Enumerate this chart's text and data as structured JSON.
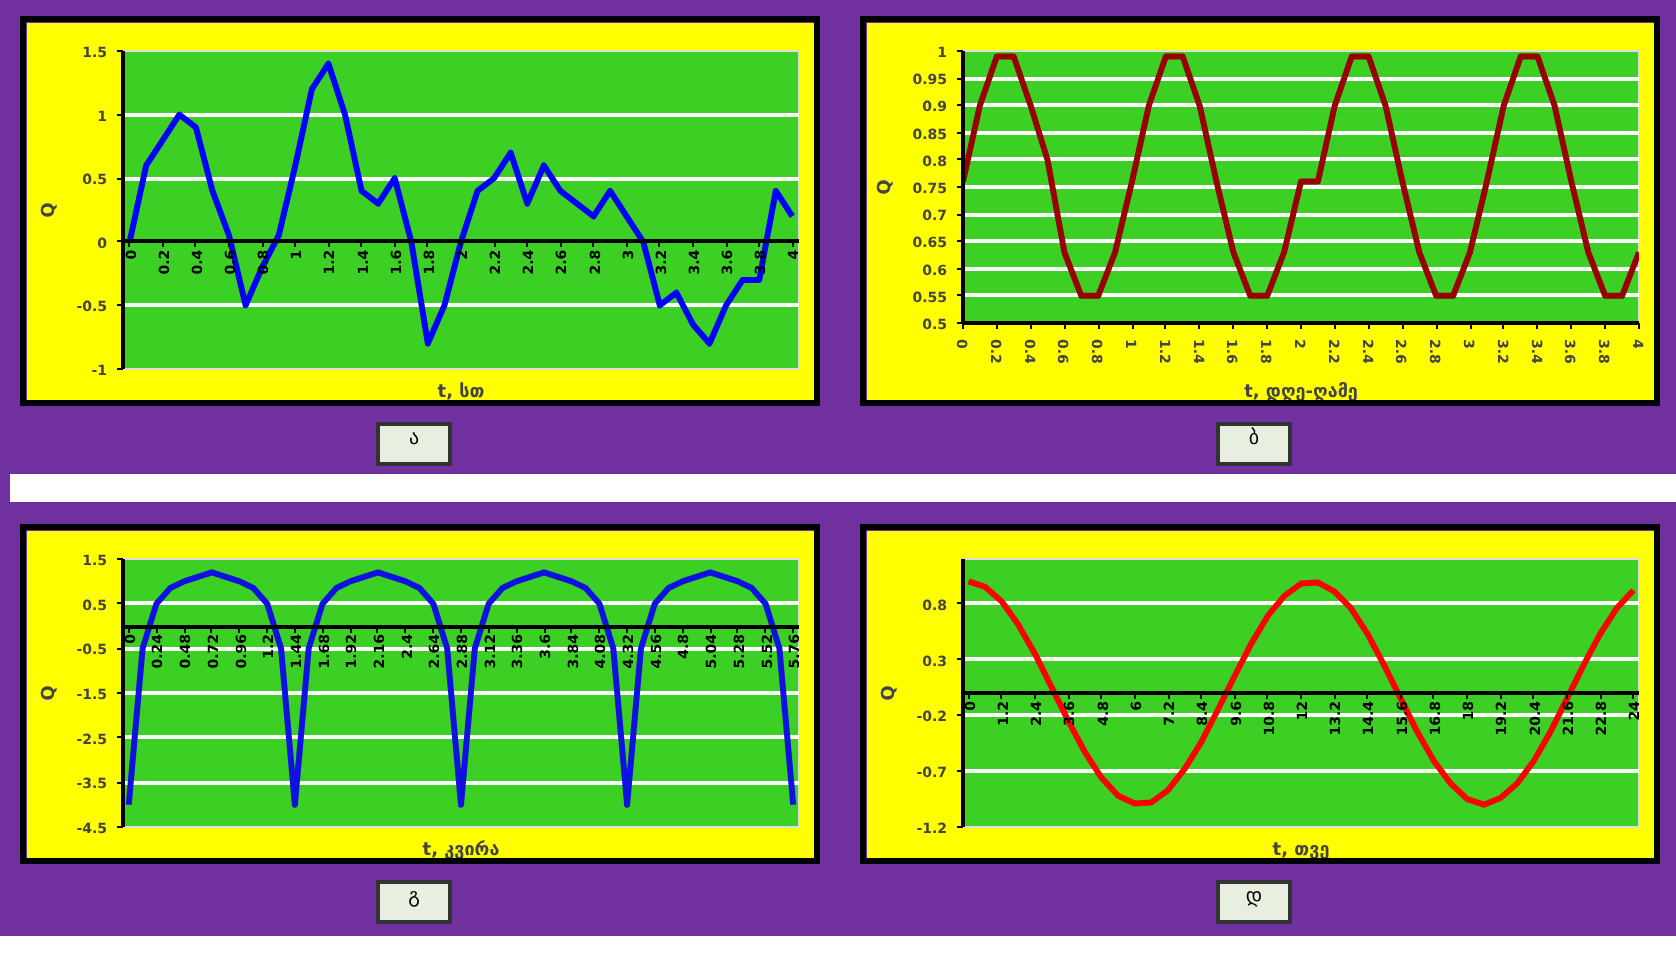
{
  "chart_data": [
    {
      "type": "line",
      "xlabel": "t, სთ",
      "ylabel": "Q",
      "color": "#0000ff",
      "x": [
        0,
        0.1,
        0.2,
        0.3,
        0.4,
        0.5,
        0.6,
        0.7,
        0.8,
        0.9,
        1,
        1.1,
        1.2,
        1.3,
        1.4,
        1.5,
        1.6,
        1.7,
        1.8,
        1.9,
        2,
        2.1,
        2.2,
        2.3,
        2.4,
        2.5,
        2.6,
        2.7,
        2.8,
        2.9,
        3,
        3.1,
        3.2,
        3.3,
        3.4,
        3.5,
        3.6,
        3.7,
        3.8,
        3.9,
        4
      ],
      "values": [
        0,
        0.6,
        0.8,
        1.0,
        0.9,
        0.4,
        0.05,
        -0.5,
        -0.2,
        0.05,
        0.6,
        1.2,
        1.4,
        1.0,
        0.4,
        0.3,
        0.5,
        0.0,
        -0.8,
        -0.5,
        0.0,
        0.4,
        0.5,
        0.7,
        0.3,
        0.6,
        0.4,
        0.3,
        0.2,
        0.4,
        0.2,
        0.0,
        -0.5,
        -0.4,
        -0.65,
        -0.8,
        -0.5,
        -0.3,
        -0.3,
        0.4,
        0.2
      ],
      "xlim": [
        -0.04,
        4.04
      ],
      "ylim": [
        -1,
        1.5
      ],
      "xticks": [
        0,
        0.2,
        0.4,
        0.6,
        0.8,
        1,
        1.2,
        1.4,
        1.6,
        1.8,
        2,
        2.2,
        2.4,
        2.6,
        2.8,
        3,
        3.2,
        3.4,
        3.6,
        3.8,
        4
      ],
      "yticks": [
        -1,
        -0.5,
        0,
        0.5,
        1,
        1.5
      ],
      "grid": "y",
      "annotations": [
        "ა"
      ]
    },
    {
      "type": "line",
      "xlabel": "t, დღე-ღამე",
      "ylabel": "Q",
      "color": "#990000",
      "x": [
        0,
        0.1,
        0.2,
        0.3,
        0.4,
        0.5,
        0.6,
        0.7,
        0.8,
        0.9,
        1,
        1.1,
        1.2,
        1.3,
        1.4,
        1.5,
        1.6,
        1.7,
        1.8,
        1.9,
        2,
        2.1,
        2.2,
        2.3,
        2.4,
        2.5,
        2.6,
        2.7,
        2.8,
        2.9,
        3,
        3.1,
        3.2,
        3.3,
        3.4,
        3.5,
        3.6,
        3.7,
        3.8,
        3.9,
        4
      ],
      "values": [
        0.76,
        0.9,
        0.99,
        0.99,
        0.9,
        0.8,
        0.63,
        0.55,
        0.55,
        0.63,
        0.76,
        0.9,
        0.99,
        0.99,
        0.9,
        0.76,
        0.63,
        0.55,
        0.55,
        0.63,
        0.76,
        0.76,
        0.9,
        0.99,
        0.99,
        0.9,
        0.76,
        0.63,
        0.55,
        0.55,
        0.63,
        0.76,
        0.9,
        0.99,
        0.99,
        0.9,
        0.76,
        0.63,
        0.55,
        0.55,
        0.63
      ],
      "xlim": [
        0,
        4
      ],
      "ylim": [
        0.5,
        1
      ],
      "xticks": [
        0,
        0.2,
        0.4,
        0.6,
        0.8,
        1,
        1.2,
        1.4,
        1.6,
        1.8,
        2,
        2.2,
        2.4,
        2.6,
        2.8,
        3,
        3.2,
        3.4,
        3.6,
        3.8,
        4
      ],
      "yticks": [
        0.5,
        0.55,
        0.6,
        0.65,
        0.7,
        0.75,
        0.8,
        0.85,
        0.9,
        0.95,
        1
      ],
      "grid": "y",
      "annotations": [
        "ბ"
      ]
    },
    {
      "type": "line",
      "xlabel": "t, კვირა",
      "ylabel": "Q",
      "color": "#1010e0",
      "x": [
        0,
        0.12,
        0.24,
        0.36,
        0.48,
        0.6,
        0.72,
        0.84,
        0.96,
        1.08,
        1.2,
        1.32,
        1.44,
        1.56,
        1.68,
        1.8,
        1.92,
        2.04,
        2.16,
        2.28,
        2.4,
        2.52,
        2.64,
        2.76,
        2.88,
        3,
        3.12,
        3.24,
        3.36,
        3.48,
        3.6,
        3.72,
        3.84,
        3.96,
        4.08,
        4.2,
        4.32,
        4.44,
        4.56,
        4.68,
        4.8,
        4.92,
        5.04,
        5.16,
        5.28,
        5.4,
        5.52,
        5.64,
        5.76
      ],
      "values": [
        -4,
        -0.5,
        0.5,
        0.85,
        1.0,
        1.1,
        1.2,
        1.1,
        1.0,
        0.85,
        0.5,
        -0.5,
        -4,
        -0.5,
        0.5,
        0.85,
        1.0,
        1.1,
        1.2,
        1.1,
        1.0,
        0.85,
        0.5,
        -0.5,
        -4,
        -0.5,
        0.5,
        0.85,
        1.0,
        1.1,
        1.2,
        1.1,
        1.0,
        0.85,
        0.5,
        -0.5,
        -4,
        -0.5,
        0.5,
        0.85,
        1.0,
        1.1,
        1.2,
        1.1,
        1.0,
        0.85,
        0.5,
        -0.5,
        -4
      ],
      "xlim": [
        -0.05,
        5.81
      ],
      "ylim": [
        -4.5,
        1.5
      ],
      "xticks": [
        0,
        0.24,
        0.48,
        0.72,
        0.96,
        1.2,
        1.44,
        1.68,
        1.92,
        2.16,
        2.4,
        2.64,
        2.88,
        3.12,
        3.36,
        3.6,
        3.84,
        4.08,
        4.32,
        4.56,
        4.8,
        5.04,
        5.28,
        5.52,
        5.76
      ],
      "yticks": [
        -4.5,
        -3.5,
        -2.5,
        -1.5,
        -0.5,
        0.5,
        1.5
      ],
      "grid": "y",
      "annotations": [
        "გ"
      ]
    },
    {
      "type": "line",
      "xlabel": "t, თვე",
      "ylabel": "Q",
      "color": "#ff0000",
      "x": [
        0,
        0.6,
        1.2,
        1.8,
        2.4,
        3,
        3.6,
        4.2,
        4.8,
        5.4,
        6,
        6.6,
        7.2,
        7.8,
        8.4,
        9,
        9.6,
        10.2,
        10.8,
        11.4,
        12,
        12.6,
        13.2,
        13.8,
        14.4,
        15,
        15.6,
        16.2,
        16.8,
        17.4,
        18,
        18.6,
        19.2,
        19.8,
        20.4,
        21,
        21.6,
        22.2,
        22.8,
        23.4,
        24
      ],
      "values": [
        1.0,
        0.95,
        0.82,
        0.61,
        0.35,
        0.05,
        -0.25,
        -0.53,
        -0.76,
        -0.92,
        -0.99,
        -0.98,
        -0.87,
        -0.68,
        -0.44,
        -0.15,
        0.15,
        0.44,
        0.69,
        0.87,
        0.98,
        0.99,
        0.91,
        0.76,
        0.53,
        0.25,
        -0.05,
        -0.35,
        -0.61,
        -0.81,
        -0.95,
        -1.0,
        -0.94,
        -0.81,
        -0.61,
        -0.35,
        -0.05,
        0.25,
        0.53,
        0.76,
        0.92
      ],
      "xlim": [
        -0.2,
        24.2
      ],
      "ylim": [
        -1.2,
        1.2
      ],
      "xticks": [
        0,
        1.2,
        2.4,
        3.6,
        4.8,
        6,
        7.2,
        8.4,
        9.6,
        10.8,
        12,
        13.2,
        14.4,
        15.6,
        16.8,
        18,
        19.2,
        20.4,
        21.6,
        22.8,
        24
      ],
      "yticks": [
        -1.2,
        -0.7,
        -0.2,
        0.3,
        0.8
      ],
      "grid": "y",
      "annotations": [
        "დ"
      ]
    }
  ]
}
